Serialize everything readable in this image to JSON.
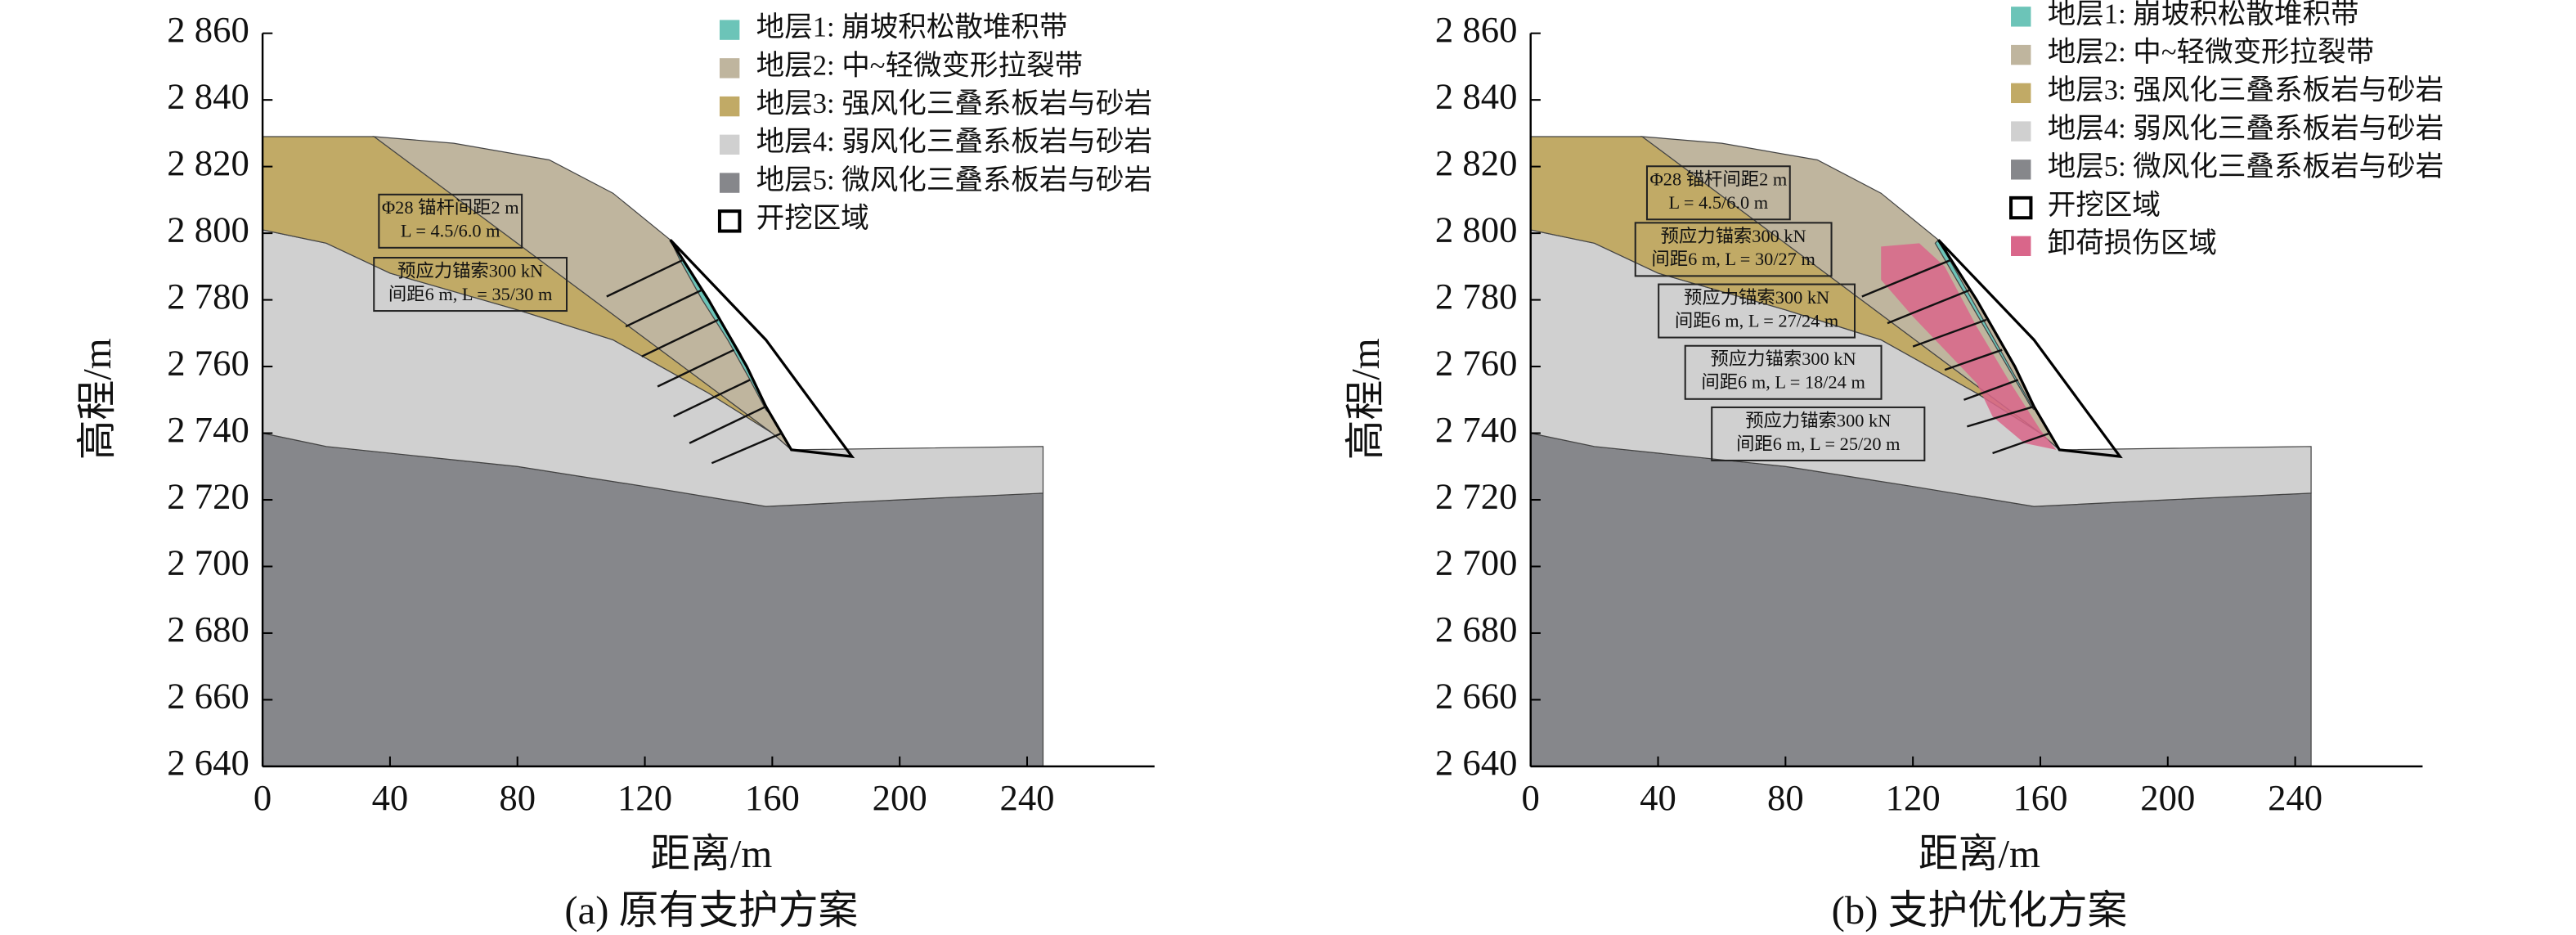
{
  "chart_data": [
    {
      "type": "section",
      "title": "(a) 原有支护方案",
      "xlabel": "距离/m",
      "ylabel": "高程/m",
      "xlim": [
        0,
        280
      ],
      "ylim": [
        2640,
        2860
      ],
      "xticks": [
        0,
        40,
        80,
        120,
        160,
        200,
        240
      ],
      "yticks": [
        {
          "value": 2640,
          "label": "2 640"
        },
        {
          "value": 2660,
          "label": "2 660"
        },
        {
          "value": 2680,
          "label": "2 680"
        },
        {
          "value": 2700,
          "label": "2 700"
        },
        {
          "value": 2720,
          "label": "2 720"
        },
        {
          "value": 2740,
          "label": "2 740"
        },
        {
          "value": 2760,
          "label": "2 760"
        },
        {
          "value": 2780,
          "label": "2 780"
        },
        {
          "value": 2800,
          "label": "2 800"
        },
        {
          "value": 2820,
          "label": "2 820"
        },
        {
          "value": 2840,
          "label": "2 840"
        },
        {
          "value": 2860,
          "label": "2 860"
        }
      ],
      "series": [
        {
          "name": "地层1: 崩坡积松散堆积带",
          "color": "#6cc4b8",
          "x": [
            128,
            135,
            142,
            150,
            156,
            160,
            158,
            153,
            146,
            138,
            131
          ],
          "values": [
            2798,
            2788,
            2777,
            2764,
            2752,
            2745,
            2747,
            2756,
            2768,
            2780,
            2792
          ]
        },
        {
          "name": "地层2: 中~轻微变形拉裂带",
          "color": "#bfb59e",
          "x": [
            35,
            60,
            90,
            110,
            128,
            140,
            152,
            158,
            166,
            160
          ],
          "values": [
            2829,
            2827,
            2822,
            2812,
            2798,
            2780,
            2760,
            2748,
            2735,
            2740
          ]
        },
        {
          "name": "地层3: 强风化三叠系板岩与砂岩",
          "color": "#c1aa66",
          "x": [
            0,
            0,
            35,
            160,
            140,
            110,
            80,
            40,
            20
          ],
          "values": [
            2801,
            2829,
            2829,
            2740,
            2752,
            2768,
            2777,
            2788,
            2797
          ]
        },
        {
          "name": "地层4: 弱风化三叠系板岩与砂岩",
          "color": "#d0d0d0",
          "x": [
            0,
            0,
            20,
            40,
            80,
            110,
            140,
            160,
            166,
            245,
            245,
            200,
            158,
            120,
            80,
            20
          ],
          "values": [
            2740,
            2801,
            2797,
            2788,
            2777,
            2768,
            2752,
            2740,
            2735,
            2736,
            2722,
            2720,
            2718,
            2724,
            2730,
            2736
          ]
        },
        {
          "name": "地层5: 微风化三叠系板岩与砂岩",
          "color": "#86878b",
          "x": [
            0,
            0,
            20,
            80,
            120,
            158,
            200,
            245,
            245
          ],
          "values": [
            2640,
            2740,
            2736,
            2730,
            2724,
            2718,
            2720,
            2722,
            2640
          ]
        },
        {
          "name": "开挖区域",
          "color": "#ffffff",
          "x": [
            128,
            158,
            185,
            166,
            158,
            152,
            140
          ],
          "values": [
            2798,
            2768,
            2733,
            2735,
            2748,
            2760,
            2780
          ]
        }
      ],
      "annotations": [
        [
          "Φ28 锚杆间距2 m",
          "L = 4.5/6.0 m"
        ],
        [
          "预应力锚索300 kN",
          "间距6 m, L = 35/30 m"
        ]
      ],
      "anchors": [
        {
          "x": [
            132,
            108
          ],
          "values": [
            2792,
            2781
          ]
        },
        {
          "x": [
            138,
            114
          ],
          "values": [
            2783,
            2772
          ]
        },
        {
          "x": [
            143,
            119
          ],
          "values": [
            2774,
            2763
          ]
        },
        {
          "x": [
            148,
            124
          ],
          "values": [
            2765,
            2754
          ]
        },
        {
          "x": [
            153,
            129
          ],
          "values": [
            2756,
            2745
          ]
        },
        {
          "x": [
            158,
            134
          ],
          "values": [
            2748,
            2737
          ]
        },
        {
          "x": [
            163,
            141
          ],
          "values": [
            2740,
            2731
          ]
        }
      ]
    },
    {
      "type": "section",
      "title": "(b) 支护优化方案",
      "xlabel": "距离/m",
      "ylabel": "高程/m",
      "xlim": [
        0,
        280
      ],
      "ylim": [
        2640,
        2860
      ],
      "xticks": [
        0,
        40,
        80,
        120,
        160,
        200,
        240
      ],
      "yticks": [
        {
          "value": 2640,
          "label": "2 640"
        },
        {
          "value": 2660,
          "label": "2 660"
        },
        {
          "value": 2680,
          "label": "2 680"
        },
        {
          "value": 2700,
          "label": "2 700"
        },
        {
          "value": 2720,
          "label": "2 720"
        },
        {
          "value": 2740,
          "label": "2 740"
        },
        {
          "value": 2760,
          "label": "2 760"
        },
        {
          "value": 2780,
          "label": "2 780"
        },
        {
          "value": 2800,
          "label": "2 800"
        },
        {
          "value": 2820,
          "label": "2 820"
        },
        {
          "value": 2840,
          "label": "2 840"
        },
        {
          "value": 2860,
          "label": "2 860"
        }
      ],
      "series": [
        {
          "name": "地层1: 崩坡积松散堆积带",
          "color": "#6cc4b8",
          "x": [
            128,
            158,
            157,
            127
          ],
          "values": [
            2798,
            2747,
            2748,
            2797
          ]
        },
        {
          "name": "地层2: 中~轻微变形拉裂带",
          "color": "#bfb59e",
          "x": [
            35,
            60,
            90,
            110,
            128,
            140,
            152,
            158,
            166,
            160
          ],
          "values": [
            2829,
            2827,
            2822,
            2812,
            2798,
            2780,
            2760,
            2748,
            2735,
            2740
          ]
        },
        {
          "name": "地层3: 强风化三叠系板岩与砂岩",
          "color": "#c1aa66",
          "x": [
            0,
            0,
            35,
            160,
            140,
            110,
            80,
            40,
            20
          ],
          "values": [
            2801,
            2829,
            2829,
            2740,
            2752,
            2768,
            2777,
            2788,
            2797
          ]
        },
        {
          "name": "地层4: 弱风化三叠系板岩与砂岩",
          "color": "#d0d0d0",
          "x": [
            0,
            0,
            20,
            40,
            80,
            110,
            140,
            160,
            166,
            245,
            245,
            200,
            158,
            120,
            80,
            20
          ],
          "values": [
            2740,
            2801,
            2797,
            2788,
            2777,
            2768,
            2752,
            2740,
            2735,
            2736,
            2722,
            2720,
            2718,
            2724,
            2730,
            2736
          ]
        },
        {
          "name": "地层5: 微风化三叠系板岩与砂岩",
          "color": "#86878b",
          "x": [
            0,
            0,
            20,
            80,
            120,
            158,
            200,
            245,
            245
          ],
          "values": [
            2640,
            2740,
            2736,
            2730,
            2724,
            2718,
            2720,
            2722,
            2640
          ]
        },
        {
          "name": "开挖区域",
          "color": "#ffffff",
          "x": [
            128,
            158,
            185,
            166,
            158,
            152,
            140
          ],
          "values": [
            2798,
            2768,
            2733,
            2735,
            2748,
            2760,
            2780
          ]
        },
        {
          "name": "卸荷损伤区域",
          "color": "#d9668a",
          "x": [
            110,
            122,
            130,
            140,
            150,
            160,
            165,
            155,
            145,
            140,
            130,
            120,
            110
          ],
          "values": [
            2796,
            2797,
            2790,
            2772,
            2756,
            2741,
            2735,
            2737,
            2745,
            2755,
            2765,
            2775,
            2786
          ]
        }
      ],
      "annotations": [
        [
          "Φ28 锚杆间距2 m",
          "L = 4.5/6.0 m"
        ],
        [
          "预应力锚索300 kN",
          "间距6 m, L = 30/27 m"
        ],
        [
          "预应力锚索300 kN",
          "间距6 m, L = 27/24 m"
        ],
        [
          "预应力锚索300 kN",
          "间距6 m, L = 18/24 m"
        ],
        [
          "预应力锚索300 kN",
          "间距6 m, L = 25/20 m"
        ]
      ],
      "anchors": [
        {
          "x": [
            132,
            104
          ],
          "values": [
            2792,
            2781
          ]
        },
        {
          "x": [
            138,
            112
          ],
          "values": [
            2783,
            2773
          ]
        },
        {
          "x": [
            143,
            120
          ],
          "values": [
            2774,
            2766
          ]
        },
        {
          "x": [
            148,
            130
          ],
          "values": [
            2765,
            2759
          ]
        },
        {
          "x": [
            153,
            136
          ],
          "values": [
            2756,
            2750
          ]
        },
        {
          "x": [
            158,
            137
          ],
          "values": [
            2748,
            2742
          ]
        },
        {
          "x": [
            163,
            145
          ],
          "values": [
            2740,
            2734
          ]
        }
      ]
    }
  ]
}
